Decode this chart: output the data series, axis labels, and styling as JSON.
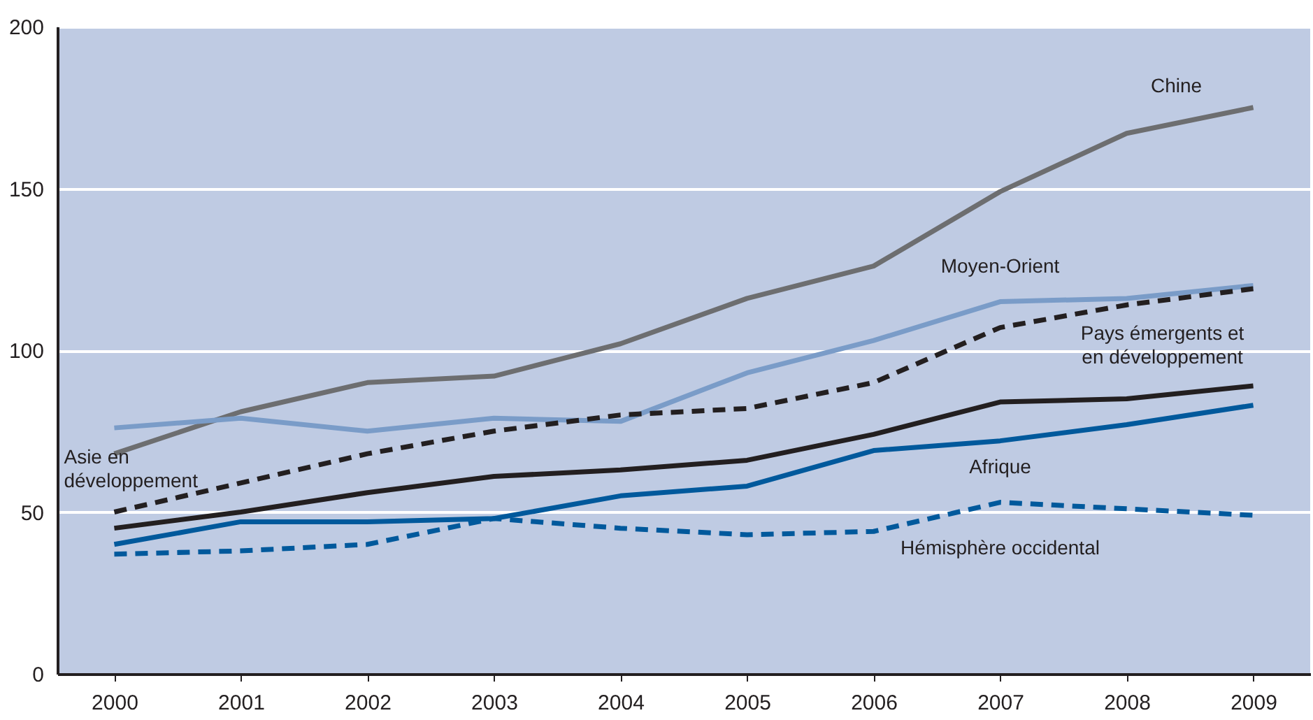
{
  "chart_data": {
    "type": "line",
    "categories": [
      "2000",
      "2001",
      "2002",
      "2003",
      "2004",
      "2005",
      "2006",
      "2007",
      "2008",
      "2009"
    ],
    "series": [
      {
        "name": "Chine",
        "color": "#6d6e70",
        "line_style": "solid",
        "values": [
          68,
          81,
          90,
          92,
          102,
          116,
          126,
          149,
          167,
          175
        ]
      },
      {
        "name": "Moyen-Orient",
        "color": "#7a9cc8",
        "line_style": "solid",
        "values": [
          76,
          79,
          75,
          79,
          78,
          93,
          103,
          115,
          116,
          120
        ]
      },
      {
        "name": "Asie en\ndéveloppement",
        "color": "#231f20",
        "line_style": "dashed",
        "values": [
          50,
          59,
          68,
          75,
          80,
          82,
          90,
          107,
          114,
          119
        ]
      },
      {
        "name": "Pays émergents et\nen développement",
        "color": "#231f20",
        "line_style": "solid",
        "values": [
          45,
          50,
          56,
          61,
          63,
          66,
          74,
          84,
          85,
          89
        ]
      },
      {
        "name": "Afrique",
        "color": "#00599c",
        "line_style": "solid",
        "values": [
          40,
          47,
          47,
          48,
          55,
          58,
          69,
          72,
          77,
          83
        ]
      },
      {
        "name": "Hémisphère occidental",
        "color": "#00599c",
        "line_style": "dashed",
        "values": [
          37,
          38,
          40,
          48,
          45,
          43,
          44,
          53,
          51,
          49
        ]
      }
    ],
    "ylim": [
      0,
      200
    ],
    "yticks": [
      0,
      50,
      100,
      150,
      200
    ],
    "grid": "y"
  }
}
